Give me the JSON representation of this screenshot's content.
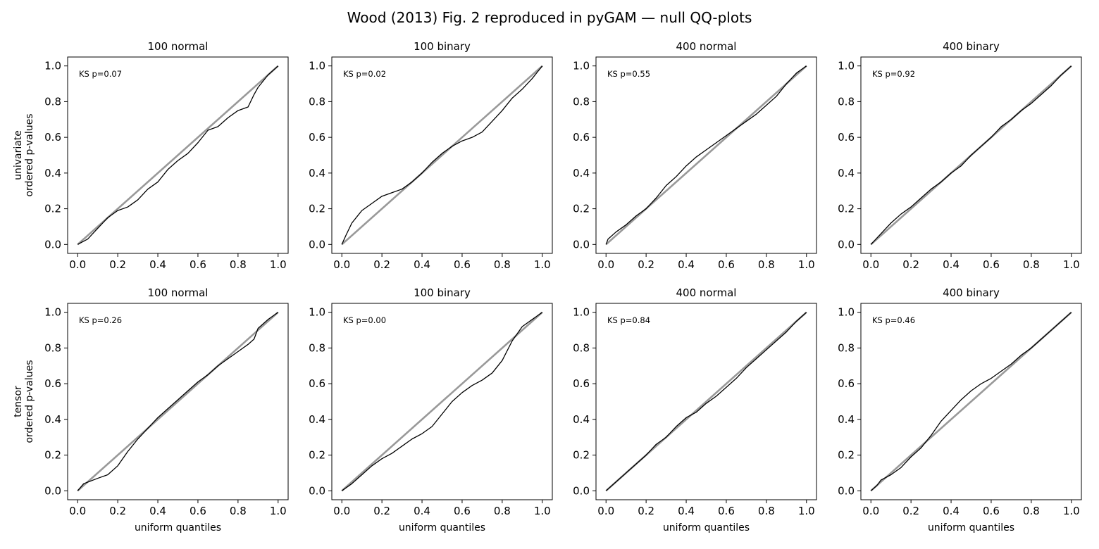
{
  "figure": {
    "title": "Wood (2013) Fig. 2 reproduced in pyGAM — null QQ-plots",
    "row_labels": [
      [
        "univariate",
        "ordered p-values"
      ],
      [
        "tensor",
        "ordered p-values"
      ]
    ],
    "xlabel": "uniform quantiles",
    "colors": {
      "reference": "#999999",
      "empirical": "#000000",
      "background": "#ffffff"
    }
  },
  "chart_data": [
    {
      "type": "line",
      "row": 0,
      "col": 0,
      "title": "100 normal",
      "annotation": "KS p=0.07",
      "xlim": [
        -0.05,
        1.05
      ],
      "ylim": [
        -0.05,
        1.05
      ],
      "xticks": [
        "0.0",
        "0.2",
        "0.4",
        "0.6",
        "0.8",
        "1.0"
      ],
      "yticks": [
        "0.0",
        "0.2",
        "0.4",
        "0.6",
        "0.8",
        "1.0"
      ],
      "grid": false,
      "series": [
        {
          "role": "reference",
          "x": [
            0,
            1
          ],
          "y": [
            0,
            1
          ]
        },
        {
          "role": "empirical",
          "x": [
            0,
            0.05,
            0.1,
            0.15,
            0.2,
            0.25,
            0.3,
            0.35,
            0.4,
            0.45,
            0.5,
            0.55,
            0.6,
            0.65,
            0.7,
            0.75,
            0.8,
            0.85,
            0.88,
            0.9,
            0.95,
            1
          ],
          "y": [
            0,
            0.03,
            0.09,
            0.15,
            0.19,
            0.21,
            0.25,
            0.31,
            0.35,
            0.42,
            0.47,
            0.51,
            0.57,
            0.64,
            0.66,
            0.71,
            0.75,
            0.77,
            0.84,
            0.88,
            0.95,
            1
          ]
        }
      ]
    },
    {
      "type": "line",
      "row": 0,
      "col": 1,
      "title": "100 binary",
      "annotation": "KS p=0.02",
      "xlim": [
        -0.05,
        1.05
      ],
      "ylim": [
        -0.05,
        1.05
      ],
      "xticks": [
        "0.0",
        "0.2",
        "0.4",
        "0.6",
        "0.8",
        "1.0"
      ],
      "yticks": [
        "0.0",
        "0.2",
        "0.4",
        "0.6",
        "0.8",
        "1.0"
      ],
      "grid": false,
      "series": [
        {
          "role": "reference",
          "x": [
            0,
            1
          ],
          "y": [
            0,
            1
          ]
        },
        {
          "role": "empirical",
          "x": [
            0,
            0.02,
            0.05,
            0.1,
            0.15,
            0.2,
            0.25,
            0.3,
            0.35,
            0.4,
            0.45,
            0.5,
            0.55,
            0.6,
            0.65,
            0.7,
            0.75,
            0.8,
            0.85,
            0.9,
            0.95,
            1
          ],
          "y": [
            0,
            0.05,
            0.12,
            0.19,
            0.23,
            0.27,
            0.29,
            0.31,
            0.35,
            0.4,
            0.46,
            0.51,
            0.55,
            0.58,
            0.6,
            0.63,
            0.69,
            0.75,
            0.82,
            0.87,
            0.93,
            1
          ]
        }
      ]
    },
    {
      "type": "line",
      "row": 0,
      "col": 2,
      "title": "400 normal",
      "annotation": "KS p=0.55",
      "xlim": [
        -0.05,
        1.05
      ],
      "ylim": [
        -0.05,
        1.05
      ],
      "xticks": [
        "0.0",
        "0.2",
        "0.4",
        "0.6",
        "0.8",
        "1.0"
      ],
      "yticks": [
        "0.0",
        "0.2",
        "0.4",
        "0.6",
        "0.8",
        "1.0"
      ],
      "grid": false,
      "series": [
        {
          "role": "reference",
          "x": [
            0,
            1
          ],
          "y": [
            0,
            1
          ]
        },
        {
          "role": "empirical",
          "x": [
            0,
            0.01,
            0.05,
            0.1,
            0.15,
            0.2,
            0.25,
            0.3,
            0.35,
            0.4,
            0.45,
            0.5,
            0.55,
            0.6,
            0.65,
            0.7,
            0.75,
            0.8,
            0.85,
            0.9,
            0.95,
            1
          ],
          "y": [
            0,
            0.03,
            0.07,
            0.11,
            0.16,
            0.2,
            0.26,
            0.33,
            0.38,
            0.44,
            0.49,
            0.53,
            0.57,
            0.61,
            0.65,
            0.69,
            0.73,
            0.78,
            0.83,
            0.9,
            0.96,
            1
          ]
        }
      ]
    },
    {
      "type": "line",
      "row": 0,
      "col": 3,
      "title": "400 binary",
      "annotation": "KS p=0.92",
      "xlim": [
        -0.05,
        1.05
      ],
      "ylim": [
        -0.05,
        1.05
      ],
      "xticks": [
        "0.0",
        "0.2",
        "0.4",
        "0.6",
        "0.8",
        "1.0"
      ],
      "yticks": [
        "0.0",
        "0.2",
        "0.4",
        "0.6",
        "0.8",
        "1.0"
      ],
      "grid": false,
      "series": [
        {
          "role": "reference",
          "x": [
            0,
            1
          ],
          "y": [
            0,
            1
          ]
        },
        {
          "role": "empirical",
          "x": [
            0,
            0.05,
            0.1,
            0.15,
            0.2,
            0.25,
            0.3,
            0.35,
            0.4,
            0.45,
            0.5,
            0.55,
            0.6,
            0.65,
            0.7,
            0.75,
            0.8,
            0.85,
            0.9,
            0.95,
            1
          ],
          "y": [
            0,
            0.06,
            0.12,
            0.17,
            0.21,
            0.26,
            0.31,
            0.35,
            0.4,
            0.44,
            0.5,
            0.55,
            0.6,
            0.66,
            0.7,
            0.75,
            0.79,
            0.84,
            0.89,
            0.95,
            1
          ]
        }
      ]
    },
    {
      "type": "line",
      "row": 1,
      "col": 0,
      "title": "100 normal",
      "annotation": "KS p=0.26",
      "xlim": [
        -0.05,
        1.05
      ],
      "ylim": [
        -0.05,
        1.05
      ],
      "xticks": [
        "0.0",
        "0.2",
        "0.4",
        "0.6",
        "0.8",
        "1.0"
      ],
      "yticks": [
        "0.0",
        "0.2",
        "0.4",
        "0.6",
        "0.8",
        "1.0"
      ],
      "grid": false,
      "series": [
        {
          "role": "reference",
          "x": [
            0,
            1
          ],
          "y": [
            0,
            1
          ]
        },
        {
          "role": "empirical",
          "x": [
            0,
            0.03,
            0.1,
            0.15,
            0.2,
            0.25,
            0.3,
            0.35,
            0.4,
            0.45,
            0.5,
            0.55,
            0.6,
            0.65,
            0.7,
            0.75,
            0.8,
            0.85,
            0.88,
            0.9,
            0.95,
            1
          ],
          "y": [
            0,
            0.04,
            0.07,
            0.09,
            0.14,
            0.22,
            0.29,
            0.35,
            0.41,
            0.46,
            0.51,
            0.56,
            0.61,
            0.65,
            0.7,
            0.74,
            0.78,
            0.82,
            0.85,
            0.91,
            0.96,
            1
          ]
        }
      ]
    },
    {
      "type": "line",
      "row": 1,
      "col": 1,
      "title": "100 binary",
      "annotation": "KS p=0.00",
      "xlim": [
        -0.05,
        1.05
      ],
      "ylim": [
        -0.05,
        1.05
      ],
      "xticks": [
        "0.0",
        "0.2",
        "0.4",
        "0.6",
        "0.8",
        "1.0"
      ],
      "yticks": [
        "0.0",
        "0.2",
        "0.4",
        "0.6",
        "0.8",
        "1.0"
      ],
      "grid": false,
      "series": [
        {
          "role": "reference",
          "x": [
            0,
            1
          ],
          "y": [
            0,
            1
          ]
        },
        {
          "role": "empirical",
          "x": [
            0,
            0.05,
            0.1,
            0.15,
            0.2,
            0.25,
            0.3,
            0.35,
            0.4,
            0.45,
            0.5,
            0.55,
            0.6,
            0.65,
            0.7,
            0.75,
            0.8,
            0.85,
            0.9,
            0.95,
            1
          ],
          "y": [
            0,
            0.04,
            0.09,
            0.14,
            0.18,
            0.21,
            0.25,
            0.29,
            0.32,
            0.36,
            0.43,
            0.5,
            0.55,
            0.59,
            0.62,
            0.66,
            0.73,
            0.84,
            0.92,
            0.96,
            1
          ]
        }
      ]
    },
    {
      "type": "line",
      "row": 1,
      "col": 2,
      "title": "400 normal",
      "annotation": "KS p=0.84",
      "xlim": [
        -0.05,
        1.05
      ],
      "ylim": [
        -0.05,
        1.05
      ],
      "xticks": [
        "0.0",
        "0.2",
        "0.4",
        "0.6",
        "0.8",
        "1.0"
      ],
      "yticks": [
        "0.0",
        "0.2",
        "0.4",
        "0.6",
        "0.8",
        "1.0"
      ],
      "grid": false,
      "series": [
        {
          "role": "reference",
          "x": [
            0,
            1
          ],
          "y": [
            0,
            1
          ]
        },
        {
          "role": "empirical",
          "x": [
            0,
            0.05,
            0.1,
            0.15,
            0.2,
            0.25,
            0.3,
            0.35,
            0.4,
            0.45,
            0.5,
            0.55,
            0.6,
            0.65,
            0.7,
            0.75,
            0.8,
            0.85,
            0.9,
            0.95,
            1
          ],
          "y": [
            0,
            0.05,
            0.1,
            0.15,
            0.2,
            0.26,
            0.3,
            0.36,
            0.41,
            0.44,
            0.49,
            0.53,
            0.58,
            0.63,
            0.69,
            0.74,
            0.79,
            0.84,
            0.89,
            0.95,
            1
          ]
        }
      ]
    },
    {
      "type": "line",
      "row": 1,
      "col": 3,
      "title": "400 binary",
      "annotation": "KS p=0.46",
      "xlim": [
        -0.05,
        1.05
      ],
      "ylim": [
        -0.05,
        1.05
      ],
      "xticks": [
        "0.0",
        "0.2",
        "0.4",
        "0.6",
        "0.8",
        "1.0"
      ],
      "yticks": [
        "0.0",
        "0.2",
        "0.4",
        "0.6",
        "0.8",
        "1.0"
      ],
      "grid": false,
      "series": [
        {
          "role": "reference",
          "x": [
            0,
            1
          ],
          "y": [
            0,
            1
          ]
        },
        {
          "role": "empirical",
          "x": [
            0,
            0.03,
            0.05,
            0.1,
            0.15,
            0.2,
            0.25,
            0.3,
            0.35,
            0.4,
            0.45,
            0.5,
            0.55,
            0.6,
            0.65,
            0.7,
            0.75,
            0.8,
            0.85,
            0.9,
            0.95,
            1
          ],
          "y": [
            0,
            0.03,
            0.06,
            0.09,
            0.13,
            0.19,
            0.24,
            0.31,
            0.39,
            0.45,
            0.51,
            0.56,
            0.6,
            0.63,
            0.67,
            0.71,
            0.76,
            0.8,
            0.85,
            0.9,
            0.95,
            1
          ]
        }
      ]
    }
  ]
}
